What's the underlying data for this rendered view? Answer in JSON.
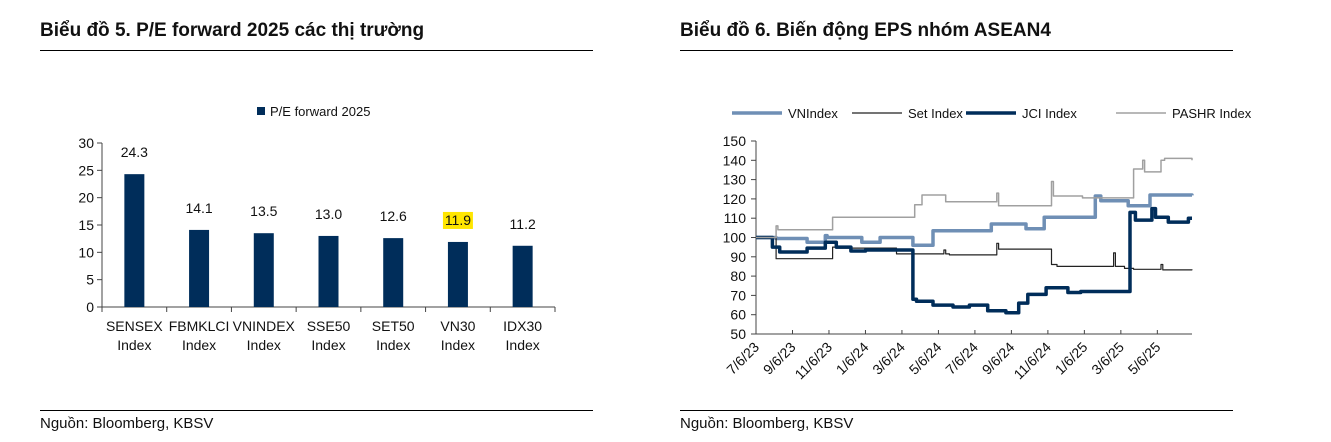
{
  "left": {
    "title": "Biểu đồ 5. P/E forward 2025 các thị trường",
    "source": "Nguồn: Bloomberg, KBSV"
  },
  "right": {
    "title": "Biểu đồ 6. Biến động EPS nhóm ASEAN4",
    "source": "Nguồn: Bloomberg, KBSV"
  },
  "chart_data": [
    {
      "type": "bar",
      "title": "P/E forward 2025",
      "legend": [
        "P/E forward 2025"
      ],
      "legend_position": "top",
      "categories": [
        "SENSEX Index",
        "FBMKLCI Index",
        "VNINDEX Index",
        "SSE50 Index",
        "SET50 Index",
        "VN30 Index",
        "IDX30 Index"
      ],
      "values": [
        24.3,
        14.1,
        13.5,
        13.0,
        12.6,
        11.9,
        11.2
      ],
      "labels": [
        "24.3",
        "14.1",
        "13.5",
        "13.0",
        "12.6",
        "11.9",
        "11.2"
      ],
      "highlight_index": 5,
      "highlight_color": "#ffe600",
      "bar_color": "#002d5a",
      "ylim": [
        0,
        30
      ],
      "yticks": [
        0,
        5,
        10,
        15,
        20,
        25,
        30
      ]
    },
    {
      "type": "line",
      "legend_position": "top",
      "x_unit": "months since 7/6/23",
      "xticks": [
        "7/6/23",
        "9/6/23",
        "11/6/23",
        "1/6/24",
        "3/6/24",
        "5/6/24",
        "7/6/24",
        "9/6/24",
        "11/6/24",
        "1/6/25",
        "3/6/25",
        "5/6/25"
      ],
      "xlim": [
        0,
        23.9
      ],
      "ylim": [
        50,
        150
      ],
      "yticks": [
        50,
        60,
        70,
        80,
        90,
        100,
        110,
        120,
        130,
        140,
        150
      ],
      "series": [
        {
          "name": "VNIndex",
          "color": "#6f8fb5",
          "width": 3.5,
          "points": [
            [
              0,
              100
            ],
            [
              1.1,
              99.5
            ],
            [
              2.8,
              97.5
            ],
            [
              3.8,
              101
            ],
            [
              3.9,
              100
            ],
            [
              5.8,
              97.5
            ],
            [
              6.8,
              100
            ],
            [
              8.6,
              96
            ],
            [
              9.7,
              103.5
            ],
            [
              12.9,
              107
            ],
            [
              14.8,
              104.5
            ],
            [
              15.8,
              110.5
            ],
            [
              18.6,
              121.5
            ],
            [
              18.9,
              119
            ],
            [
              20.4,
              116.5
            ],
            [
              21.6,
              122
            ],
            [
              23.9,
              121.8
            ]
          ]
        },
        {
          "name": "Set Index",
          "color": "#222222",
          "width": 1.2,
          "points": [
            [
              0,
              100
            ],
            [
              1.1,
              89
            ],
            [
              4.2,
              95
            ],
            [
              4.4,
              94.5
            ],
            [
              7.7,
              91.5
            ],
            [
              10.3,
              93.5
            ],
            [
              10.4,
              91.5
            ],
            [
              10.6,
              91
            ],
            [
              13.2,
              97
            ],
            [
              13.3,
              94
            ],
            [
              16.2,
              86
            ],
            [
              16.5,
              85
            ],
            [
              19.6,
              92
            ],
            [
              19.7,
              85
            ],
            [
              20.2,
              84
            ],
            [
              20.7,
              83.5
            ],
            [
              22.2,
              86
            ],
            [
              22.3,
              83.2
            ],
            [
              23.9,
              83
            ]
          ]
        },
        {
          "name": "JCI Index",
          "color": "#002d5a",
          "width": 3.5,
          "points": [
            [
              0,
              100
            ],
            [
              0.9,
              95
            ],
            [
              1.3,
              92.5
            ],
            [
              2.8,
              94.5
            ],
            [
              3.8,
              97.5
            ],
            [
              4.4,
              95
            ],
            [
              5.2,
              93
            ],
            [
              6,
              93.5
            ],
            [
              8.6,
              68
            ],
            [
              8.8,
              67
            ],
            [
              9.7,
              65
            ],
            [
              10.8,
              64
            ],
            [
              11.7,
              65
            ],
            [
              12.7,
              62
            ],
            [
              13.7,
              61
            ],
            [
              14.4,
              66
            ],
            [
              14.9,
              70.5
            ],
            [
              15.9,
              74
            ],
            [
              17.1,
              71.5
            ],
            [
              17.8,
              72
            ],
            [
              20.5,
              113
            ],
            [
              20.8,
              109
            ],
            [
              21.7,
              115
            ],
            [
              21.9,
              110.5
            ],
            [
              22.6,
              108
            ],
            [
              23.7,
              110
            ]
          ]
        },
        {
          "name": "PASHR Index",
          "color": "#a0a0a0",
          "width": 1.5,
          "points": [
            [
              0,
              100
            ],
            [
              1.1,
              106
            ],
            [
              1.2,
              104
            ],
            [
              4.2,
              110.5
            ],
            [
              8.7,
              117
            ],
            [
              9.1,
              122
            ],
            [
              10.4,
              118.5
            ],
            [
              13.2,
              123
            ],
            [
              13.3,
              116.5
            ],
            [
              16.2,
              129
            ],
            [
              16.3,
              121.5
            ],
            [
              17.9,
              120.5
            ],
            [
              20.7,
              135.5
            ],
            [
              21.2,
              140
            ],
            [
              21.3,
              134
            ],
            [
              22.2,
              140
            ],
            [
              22.4,
              141
            ],
            [
              23.9,
              140
            ]
          ]
        }
      ]
    }
  ]
}
